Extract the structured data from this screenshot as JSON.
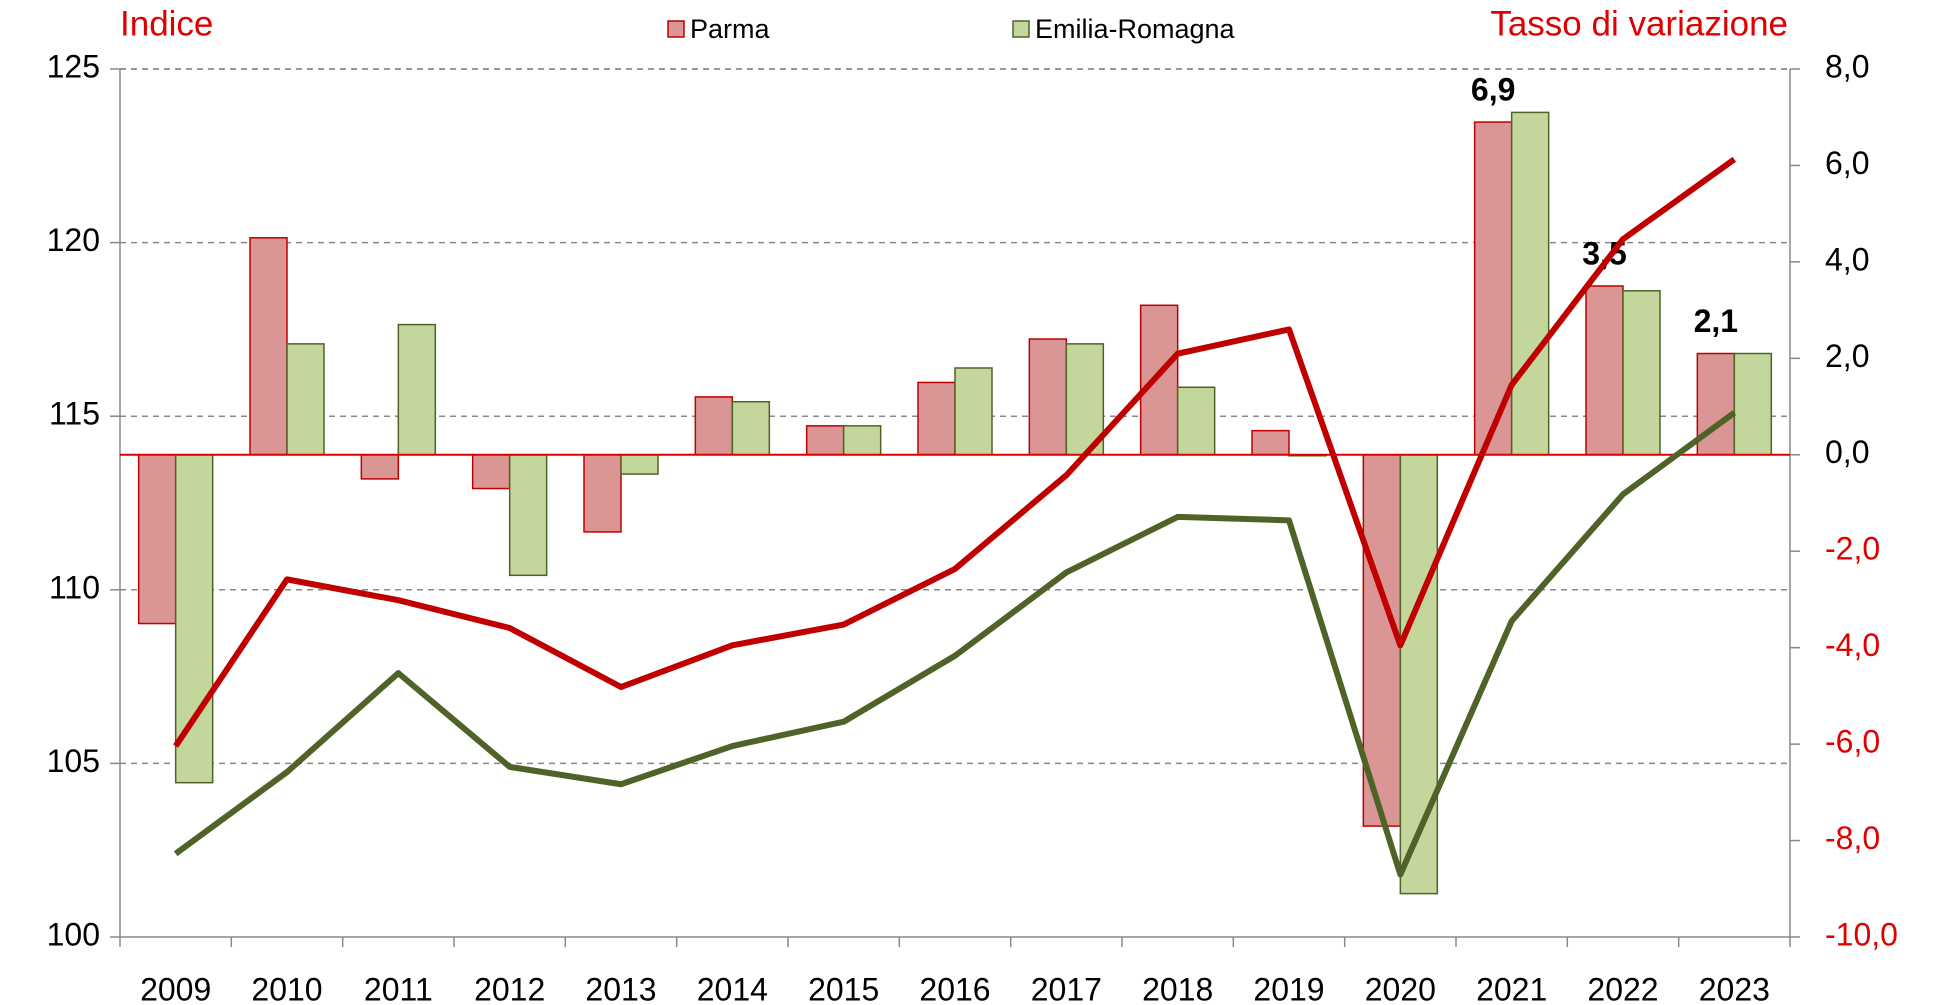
{
  "chart_data": {
    "type": "bar-line",
    "y_label": "Indice",
    "y2_label": "Tasso di variazione",
    "categories": [
      "2009",
      "2010",
      "2011",
      "2012",
      "2013",
      "2014",
      "2015",
      "2016",
      "2017",
      "2018",
      "2019",
      "2020",
      "2021",
      "2022",
      "2023"
    ],
    "series": [
      {
        "name": "Parma",
        "type": "bar",
        "axis": "y2",
        "color": "#d99694",
        "edge": "#c00000",
        "values": [
          -3.5,
          4.5,
          -0.5,
          -0.7,
          -1.6,
          1.2,
          0.6,
          1.5,
          2.4,
          3.1,
          0.5,
          -7.7,
          6.9,
          3.5,
          2.1
        ],
        "value_labels": [
          null,
          null,
          null,
          null,
          null,
          null,
          null,
          null,
          null,
          null,
          null,
          null,
          "6,9",
          "3,5",
          "2,1"
        ]
      },
      {
        "name": "Emilia-Romagna",
        "type": "bar",
        "axis": "y2",
        "color": "#c3d69b",
        "edge": "#4f6228",
        "values": [
          -6.8,
          2.3,
          2.7,
          -2.5,
          -0.4,
          1.1,
          0.6,
          1.8,
          2.3,
          1.4,
          0.0,
          -9.1,
          7.1,
          3.4,
          2.1
        ]
      },
      {
        "type": "line",
        "axis": "y",
        "color": "#c00000",
        "values": [
          105.5,
          110.3,
          109.7,
          108.9,
          107.2,
          108.4,
          109.0,
          110.6,
          113.3,
          116.8,
          117.5,
          108.4,
          115.9,
          120.1,
          122.4
        ]
      },
      {
        "type": "line",
        "axis": "y",
        "color": "#4f6228",
        "values": [
          102.4,
          104.75,
          107.6,
          104.9,
          104.4,
          105.5,
          106.2,
          108.1,
          110.5,
          112.1,
          112.0,
          101.8,
          109.1,
          112.75,
          115.1
        ]
      }
    ],
    "ylim": [
      100,
      125
    ],
    "yticks": [
      100,
      105,
      110,
      115,
      120,
      125
    ],
    "y2lim": [
      -10,
      8
    ],
    "y2ticks": [
      {
        "value": -10,
        "label": "-10,0"
      },
      {
        "value": -8,
        "label": "-8,0"
      },
      {
        "value": -6,
        "label": "-6,0"
      },
      {
        "value": -4,
        "label": "-4,0"
      },
      {
        "value": -2,
        "label": "-2,0"
      },
      {
        "value": 0,
        "label": "0,0"
      },
      {
        "value": 2,
        "label": "2,0"
      },
      {
        "value": 4,
        "label": "4,0"
      },
      {
        "value": 6,
        "label": "6,0"
      },
      {
        "value": 8,
        "label": "8,0"
      }
    ],
    "grid": true,
    "legend": "top"
  }
}
